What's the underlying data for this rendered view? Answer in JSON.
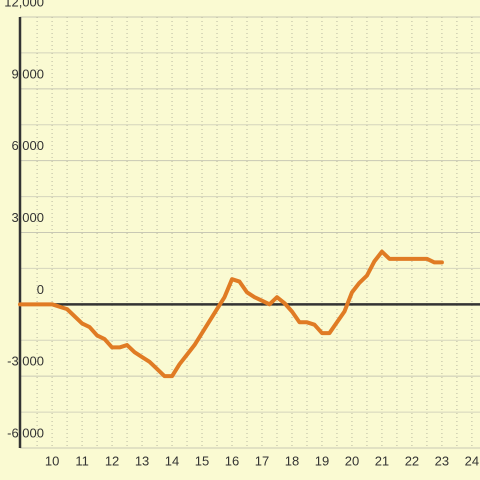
{
  "chart_data": {
    "type": "line",
    "x": [
      8.93,
      10,
      10.5,
      11,
      11.25,
      11.5,
      11.75,
      12,
      12.25,
      12.5,
      12.75,
      13,
      13.25,
      13.5,
      13.75,
      14,
      14.25,
      14.5,
      14.75,
      15,
      15.25,
      15.5,
      15.75,
      16,
      16.25,
      16.5,
      16.75,
      17,
      17.25,
      17.5,
      17.75,
      18,
      18.25,
      18.5,
      18.75,
      19,
      19.25,
      19.5,
      19.75,
      20,
      20.25,
      20.5,
      20.75,
      21,
      21.25,
      21.5,
      21.75,
      22,
      22.25,
      22.5,
      22.75,
      23
    ],
    "series": [
      {
        "color": "#e07b24",
        "values": [
          0,
          0,
          -200,
          -800,
          -950,
          -1300,
          -1450,
          -1800,
          -1800,
          -1700,
          -2000,
          -2200,
          -2400,
          -2700,
          -3000,
          -3000,
          -2500,
          -2100,
          -1700,
          -1200,
          -700,
          -200,
          300,
          1050,
          950,
          500,
          300,
          150,
          0,
          300,
          50,
          -300,
          -750,
          -750,
          -850,
          -1200,
          -1200,
          -750,
          -300,
          500,
          900,
          1200,
          1800,
          2200,
          1900,
          1900,
          1900,
          1900,
          1900,
          1900,
          1750,
          1750
        ]
      }
    ],
    "xlim": [
      8.93,
      24.27
    ],
    "xticks": [
      10,
      11,
      12,
      13,
      14,
      15,
      16,
      17,
      18,
      19,
      20,
      21,
      22,
      23,
      24
    ],
    "ylim": [
      -6000,
      12000
    ],
    "yticks": [
      {
        "value": -6000,
        "label": "-6,000"
      },
      {
        "value": -3000,
        "label": "-3,000"
      },
      0,
      {
        "value": 3000,
        "label": "3,000"
      },
      {
        "value": 6000,
        "label": "6,000"
      },
      {
        "value": 9000,
        "label": "9,000"
      },
      {
        "value": 12000,
        "label": "12,000"
      }
    ],
    "grid": true
  }
}
